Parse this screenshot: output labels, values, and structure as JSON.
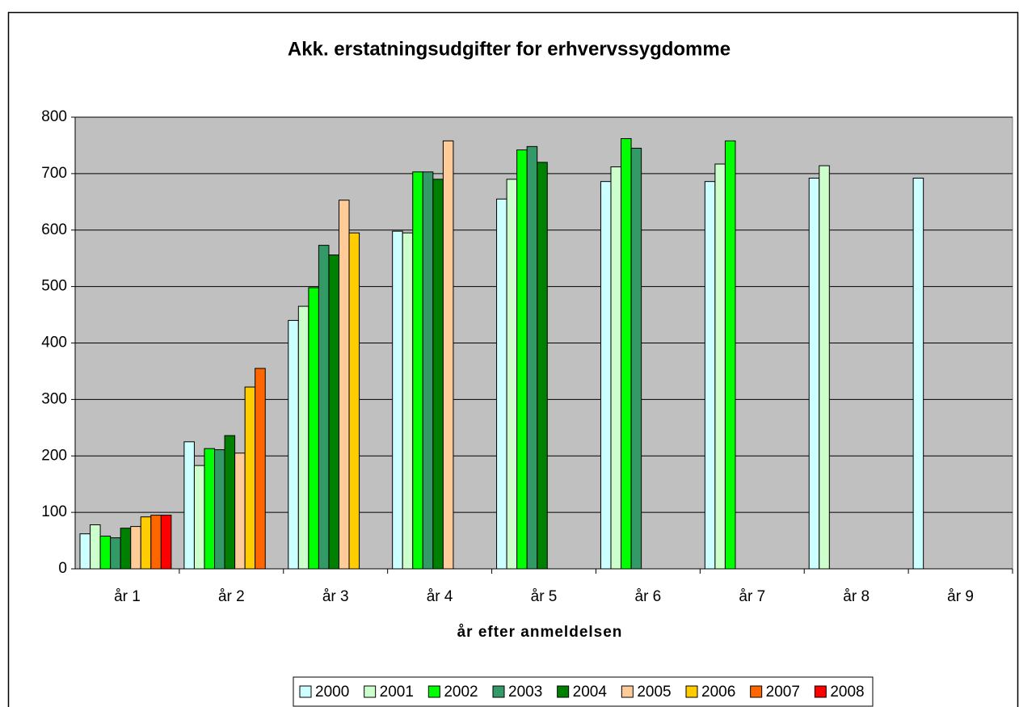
{
  "chart_data": {
    "type": "bar",
    "title": "Akk. erstatningsudgifter for erhvervssygdomme",
    "x_label": "år efter anmeldelsen",
    "categories": [
      "år 1",
      "år 2",
      "år 3",
      "år 4",
      "år 5",
      "år 6",
      "år 7",
      "år 8",
      "år 9"
    ],
    "series": [
      {
        "name": "2000",
        "color": "#ccffff",
        "values": [
          62,
          225,
          440,
          598,
          655,
          686,
          686,
          692,
          692
        ]
      },
      {
        "name": "2001",
        "color": "#ccffcc",
        "values": [
          78,
          183,
          465,
          595,
          690,
          712,
          717,
          714,
          null
        ]
      },
      {
        "name": "2002",
        "color": "#00ff00",
        "values": [
          58,
          213,
          498,
          703,
          742,
          762,
          758,
          null,
          null
        ]
      },
      {
        "name": "2003",
        "color": "#339966",
        "values": [
          55,
          211,
          573,
          703,
          748,
          745,
          null,
          null,
          null
        ]
      },
      {
        "name": "2004",
        "color": "#008000",
        "values": [
          72,
          236,
          556,
          690,
          720,
          null,
          null,
          null,
          null
        ]
      },
      {
        "name": "2005",
        "color": "#ffcc99",
        "values": [
          75,
          205,
          653,
          758,
          null,
          null,
          null,
          null,
          null
        ]
      },
      {
        "name": "2006",
        "color": "#ffcc00",
        "values": [
          92,
          322,
          595,
          null,
          null,
          null,
          null,
          null,
          null
        ]
      },
      {
        "name": "2007",
        "color": "#ff6600",
        "values": [
          95,
          355,
          null,
          null,
          null,
          null,
          null,
          null,
          null
        ]
      },
      {
        "name": "2008",
        "color": "#ff0000",
        "values": [
          95,
          null,
          null,
          null,
          null,
          null,
          null,
          null,
          null
        ]
      }
    ],
    "ylim": [
      0,
      800
    ],
    "yticks": [
      0,
      100,
      200,
      300,
      400,
      500,
      600,
      700,
      800
    ],
    "grid": true,
    "plot_background": "#c0c0c0",
    "legend": "bottom"
  }
}
